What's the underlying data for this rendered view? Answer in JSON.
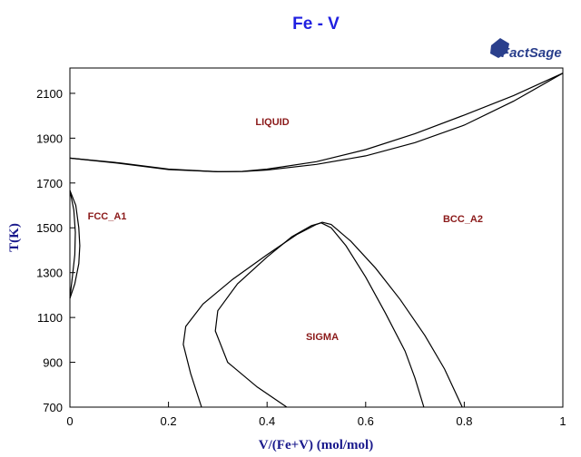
{
  "chart_data": {
    "type": "line",
    "title": "Fe - V",
    "logo": "FactSage",
    "xlabel": "V/(Fe+V) (mol/mol)",
    "ylabel": "T(K)",
    "xlim": [
      0,
      1
    ],
    "ylim": [
      700,
      2213
    ],
    "xticks": [
      0,
      0.2,
      0.4,
      0.6,
      0.8,
      1
    ],
    "yticks": [
      700,
      900,
      1100,
      1300,
      1500,
      1700,
      1900,
      2100
    ],
    "annotations": [
      "LIQUID",
      "FCC_A1",
      "BCC_A2",
      "SIGMA"
    ],
    "series": [
      {
        "color": "#000000",
        "x": [
          0,
          0.1,
          0.2,
          0.3,
          0.35,
          0.4,
          0.5,
          0.6,
          0.7,
          0.8,
          0.9,
          1
        ],
        "values": [
          1811,
          1790,
          1762,
          1750,
          1752,
          1762,
          1795,
          1849,
          1920,
          2003,
          2090,
          2190
        ]
      },
      {
        "color": "#000000",
        "x": [
          0,
          0.1,
          0.2,
          0.3,
          0.35,
          0.4,
          0.5,
          0.6,
          0.7,
          0.8,
          0.9,
          1
        ],
        "values": [
          1811,
          1788,
          1760,
          1750,
          1751,
          1758,
          1783,
          1821,
          1880,
          1958,
          2065,
          2190
        ]
      },
      {
        "color": "#000000",
        "x": [
          0,
          0.012,
          0.018,
          0.02,
          0.018,
          0.01,
          0
        ],
        "values": [
          1667,
          1600,
          1500,
          1420,
          1340,
          1250,
          1185
        ]
      },
      {
        "color": "#000000",
        "x": [
          0,
          0.008,
          0.011,
          0.01,
          0.005,
          0
        ],
        "values": [
          1667,
          1580,
          1480,
          1380,
          1280,
          1185
        ]
      },
      {
        "color": "#000000",
        "x": [
          0.267,
          0.245,
          0.23,
          0.235,
          0.27,
          0.33,
          0.4,
          0.46,
          0.5,
          0.512,
          0.53,
          0.57,
          0.62,
          0.67,
          0.72,
          0.76,
          0.796
        ],
        "values": [
          700,
          850,
          980,
          1060,
          1160,
          1270,
          1380,
          1470,
          1515,
          1525,
          1515,
          1440,
          1320,
          1180,
          1020,
          870,
          700
        ]
      },
      {
        "color": "#000000",
        "x": [
          0.44,
          0.38,
          0.32,
          0.295,
          0.3,
          0.34,
          0.4,
          0.45,
          0.49,
          0.51,
          0.53,
          0.56,
          0.6,
          0.64,
          0.68,
          0.7,
          0.718
        ],
        "values": [
          700,
          790,
          900,
          1040,
          1130,
          1250,
          1370,
          1460,
          1510,
          1522,
          1500,
          1420,
          1280,
          1120,
          950,
          830,
          700
        ]
      }
    ]
  }
}
